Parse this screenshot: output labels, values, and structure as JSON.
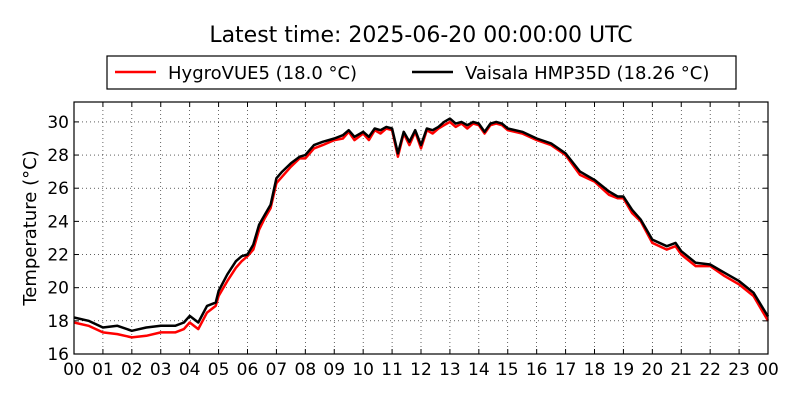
{
  "chart_data": {
    "type": "line",
    "title": "Latest time: 2025-06-20 00:00:00 UTC",
    "xlabel": "",
    "ylabel": "Temperature (°C)",
    "xlim": [
      0,
      24
    ],
    "ylim": [
      16,
      31.2
    ],
    "grid": true,
    "legend_placement": "top",
    "x_tick_labels": [
      "00",
      "01",
      "02",
      "03",
      "04",
      "05",
      "06",
      "07",
      "08",
      "09",
      "10",
      "11",
      "12",
      "13",
      "14",
      "15",
      "16",
      "17",
      "18",
      "19",
      "20",
      "21",
      "22",
      "23",
      "00"
    ],
    "y_ticks": [
      16,
      18,
      20,
      22,
      24,
      26,
      28,
      30
    ],
    "y_tick_labels": [
      "16",
      "18",
      "20",
      "22",
      "24",
      "26",
      "28",
      "30"
    ],
    "series": [
      {
        "name": "HygroVUE5 (18.0 °C)",
        "color": "#ff0000",
        "x": [
          0,
          0.5,
          1,
          1.5,
          2,
          2.5,
          3,
          3.5,
          3.8,
          4,
          4.3,
          4.6,
          4.9,
          5,
          5.3,
          5.6,
          5.8,
          6,
          6.2,
          6.4,
          6.6,
          6.8,
          7,
          7.2,
          7.5,
          7.8,
          8,
          8.3,
          8.6,
          9,
          9.3,
          9.5,
          9.7,
          10,
          10.2,
          10.4,
          10.6,
          10.8,
          11,
          11.2,
          11.4,
          11.6,
          11.8,
          12,
          12.2,
          12.4,
          12.6,
          12.8,
          13,
          13.2,
          13.4,
          13.6,
          13.8,
          14,
          14.2,
          14.4,
          14.6,
          14.8,
          15,
          15.5,
          16,
          16.5,
          17,
          17.5,
          18,
          18.5,
          18.8,
          19,
          19.3,
          19.6,
          20,
          20.5,
          20.8,
          21,
          21.5,
          22,
          22.5,
          23,
          23.5,
          24
        ],
        "y": [
          17.9,
          17.7,
          17.3,
          17.2,
          17.0,
          17.1,
          17.3,
          17.3,
          17.5,
          17.9,
          17.5,
          18.5,
          18.9,
          19.5,
          20.4,
          21.2,
          21.6,
          21.9,
          22.3,
          23.5,
          24.2,
          24.8,
          26.3,
          26.7,
          27.3,
          27.8,
          27.8,
          28.4,
          28.6,
          28.9,
          29.0,
          29.4,
          28.9,
          29.3,
          28.9,
          29.5,
          29.3,
          29.6,
          29.5,
          27.9,
          29.3,
          28.6,
          29.4,
          28.4,
          29.5,
          29.3,
          29.6,
          29.8,
          30.0,
          29.7,
          29.9,
          29.6,
          29.9,
          29.8,
          29.3,
          29.8,
          29.9,
          29.8,
          29.5,
          29.3,
          28.9,
          28.6,
          28.0,
          26.8,
          26.4,
          25.6,
          25.4,
          25.4,
          24.5,
          24.0,
          22.7,
          22.3,
          22.5,
          22.0,
          21.3,
          21.3,
          20.7,
          20.2,
          19.5,
          18.0
        ]
      },
      {
        "name": "Vaisala HMP35D (18.26 °C)",
        "color": "#000000",
        "x": [
          0,
          0.5,
          1,
          1.5,
          2,
          2.5,
          3,
          3.5,
          3.8,
          4,
          4.3,
          4.6,
          4.9,
          5,
          5.3,
          5.6,
          5.8,
          6,
          6.2,
          6.4,
          6.6,
          6.8,
          7,
          7.2,
          7.5,
          7.8,
          8,
          8.3,
          8.6,
          9,
          9.3,
          9.5,
          9.7,
          10,
          10.2,
          10.4,
          10.6,
          10.8,
          11,
          11.2,
          11.4,
          11.6,
          11.8,
          12,
          12.2,
          12.4,
          12.6,
          12.8,
          13,
          13.2,
          13.4,
          13.6,
          13.8,
          14,
          14.2,
          14.4,
          14.6,
          14.8,
          15,
          15.5,
          16,
          16.5,
          17,
          17.5,
          18,
          18.5,
          18.8,
          19,
          19.3,
          19.6,
          20,
          20.5,
          20.8,
          21,
          21.5,
          22,
          22.5,
          23,
          23.5,
          24
        ],
        "y": [
          18.2,
          18.0,
          17.6,
          17.7,
          17.4,
          17.6,
          17.7,
          17.7,
          17.9,
          18.3,
          17.9,
          18.9,
          19.1,
          19.8,
          20.8,
          21.6,
          21.9,
          22.0,
          22.6,
          23.8,
          24.4,
          25.0,
          26.6,
          27.0,
          27.5,
          27.9,
          28.0,
          28.6,
          28.8,
          29.0,
          29.2,
          29.5,
          29.1,
          29.4,
          29.1,
          29.6,
          29.5,
          29.7,
          29.6,
          28.1,
          29.4,
          28.8,
          29.5,
          28.6,
          29.6,
          29.5,
          29.7,
          30.0,
          30.2,
          29.9,
          30.0,
          29.8,
          30.0,
          29.9,
          29.4,
          29.9,
          30.0,
          29.9,
          29.6,
          29.4,
          29.0,
          28.7,
          28.1,
          27.0,
          26.5,
          25.8,
          25.5,
          25.5,
          24.7,
          24.1,
          22.9,
          22.5,
          22.7,
          22.2,
          21.5,
          21.4,
          20.9,
          20.4,
          19.7,
          18.26
        ]
      }
    ]
  }
}
